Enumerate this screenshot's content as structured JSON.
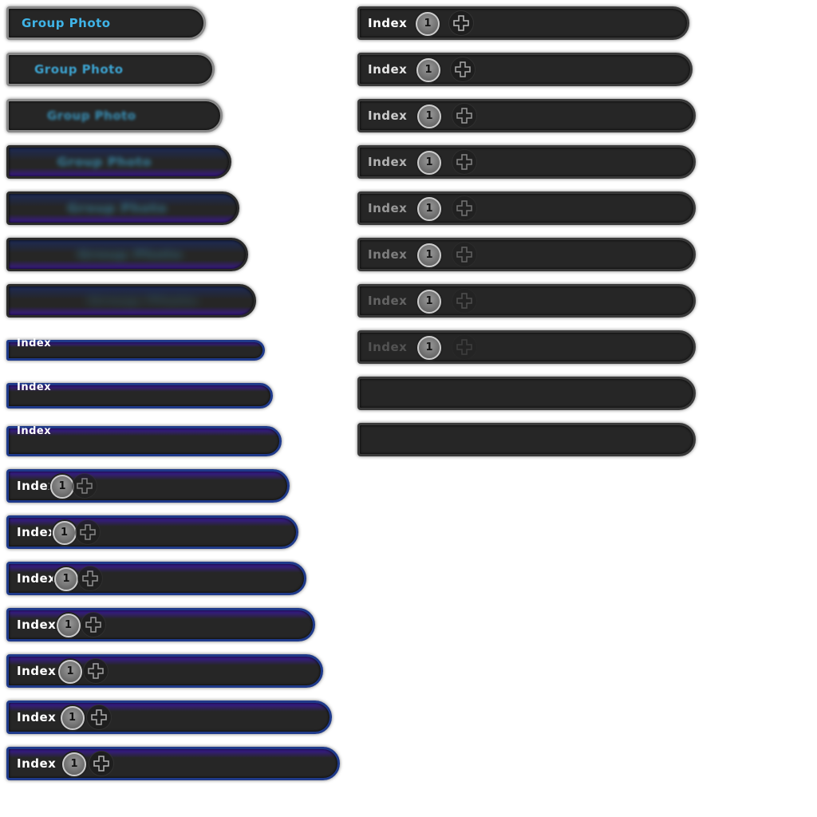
{
  "left_frames": [
    {
      "label": "Group Photo"
    },
    {
      "label": "Group Photo"
    },
    {
      "label": "Group Photo"
    },
    {
      "label": "Group Photo"
    },
    {
      "label": "Group Photo"
    },
    {
      "label": "Group Photo"
    },
    {
      "label": "Group Photo"
    },
    {
      "label": "Index"
    },
    {
      "label": "Index"
    },
    {
      "label": "Index"
    },
    {
      "label": "Index",
      "badge": "1"
    },
    {
      "label": "Index",
      "badge": "1"
    },
    {
      "label": "Index",
      "badge": "1"
    },
    {
      "label": "Index",
      "badge": "1"
    },
    {
      "label": "Index",
      "badge": "1"
    },
    {
      "label": "Index",
      "badge": "1"
    },
    {
      "label": "Index",
      "badge": "1"
    }
  ],
  "right_frames": [
    {
      "label": "Index",
      "badge": "1"
    },
    {
      "label": "Index",
      "badge": "1"
    },
    {
      "label": "Index",
      "badge": "1"
    },
    {
      "label": "Index",
      "badge": "1"
    },
    {
      "label": "Index",
      "badge": "1"
    },
    {
      "label": "Index",
      "badge": "1"
    },
    {
      "label": "Index",
      "badge": "1"
    },
    {
      "label": "Index",
      "badge": "1"
    }
  ]
}
